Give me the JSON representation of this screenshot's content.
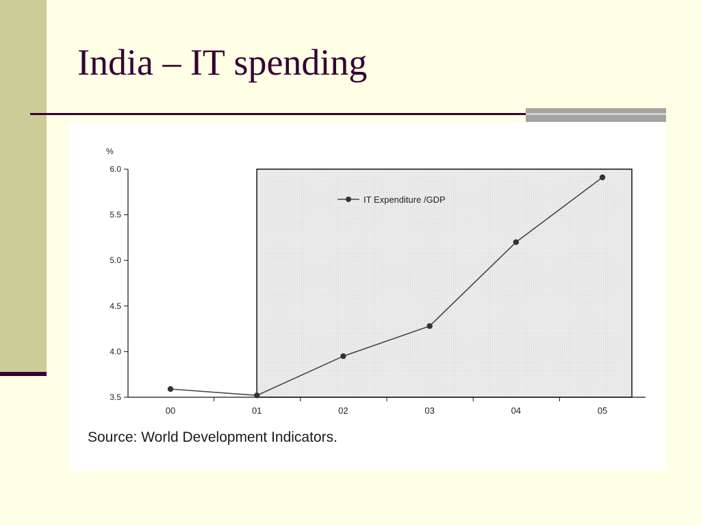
{
  "slide": {
    "title": "India – IT spending",
    "source": "Source: World Development Indicators."
  },
  "colors": {
    "background": "#ffffe6",
    "sidebar": "#cccc99",
    "title": "#330033",
    "rule": "#330033",
    "line": "#444444"
  },
  "chart_data": {
    "type": "line",
    "title": "",
    "xlabel": "",
    "ylabel": "%",
    "categories": [
      "00",
      "01",
      "02",
      "03",
      "04",
      "05"
    ],
    "ylim": [
      3.5,
      6.0
    ],
    "yticks": [
      "6.0",
      "5.5",
      "5.0",
      "4.5",
      "4.0",
      "3.5"
    ],
    "series": [
      {
        "name": "IT Expenditure /GDP",
        "values": [
          3.59,
          3.52,
          3.95,
          4.28,
          5.2,
          5.91
        ]
      }
    ],
    "legend": "top-center",
    "shaded_region": {
      "from": "01",
      "to": "05"
    },
    "grid": false
  }
}
